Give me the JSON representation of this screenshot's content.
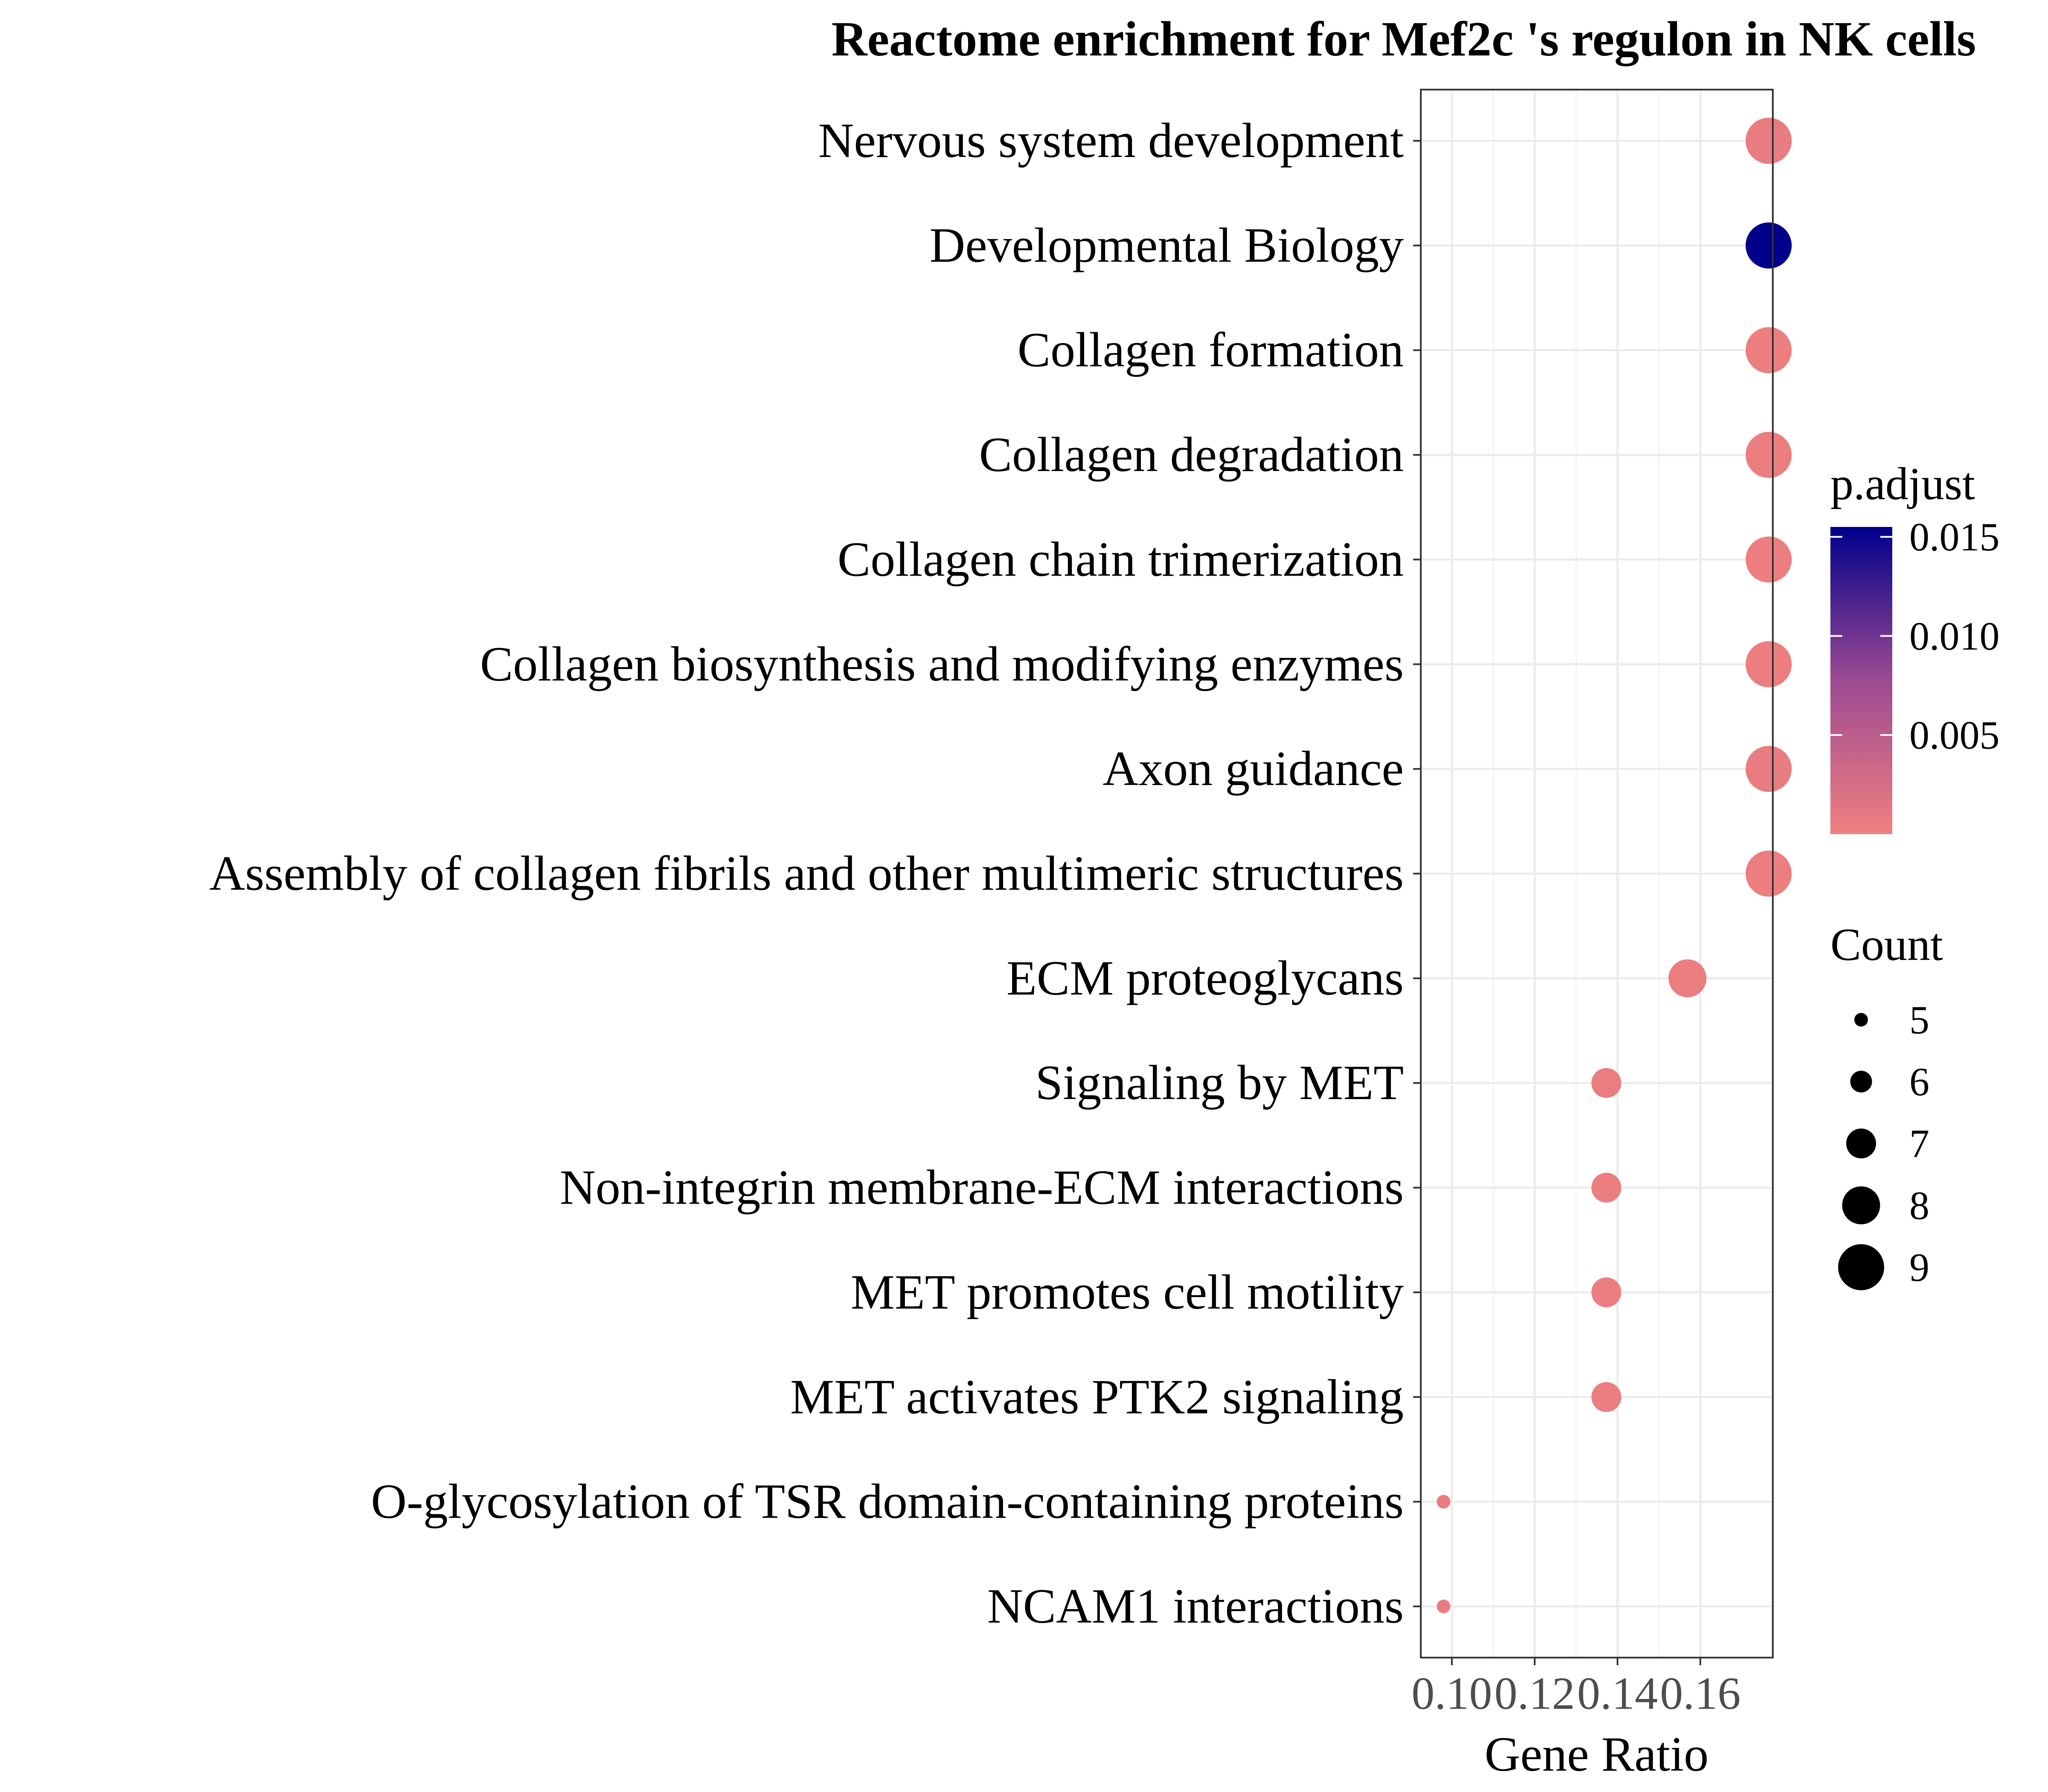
{
  "chart_data": {
    "type": "scatter",
    "title": "Reactome enrichment for Mef2c 's regulon in NK cells",
    "xlabel": "Gene Ratio",
    "ylabel": "",
    "xlim": [
      0.0925,
      0.1775
    ],
    "x_ticks": [
      0.1,
      0.12,
      0.14,
      0.16
    ],
    "x_tick_labels": [
      "0.10",
      "0.12",
      "0.14",
      "0.16"
    ],
    "grid": true,
    "categories": [
      "Nervous system development",
      "Developmental Biology",
      "Collagen formation",
      "Collagen degradation",
      "Collagen chain trimerization",
      "Collagen biosynthesis and modifying enzymes",
      "Axon guidance",
      "Assembly of collagen fibrils and other multimeric structures",
      "ECM proteoglycans",
      "Signaling by MET",
      "Non-integrin membrane-ECM interactions",
      "MET promotes cell motility",
      "MET activates PTK2 signaling",
      "O-glycosylation of TSR domain-containing proteins",
      "NCAM1 interactions"
    ],
    "points": [
      {
        "term": "Nervous system development",
        "gene_ratio": 0.1765,
        "count": 9,
        "p_adjust": 0.0005
      },
      {
        "term": "Developmental Biology",
        "gene_ratio": 0.1765,
        "count": 9,
        "p_adjust": 0.0155
      },
      {
        "term": "Collagen formation",
        "gene_ratio": 0.1765,
        "count": 9,
        "p_adjust": 0.0002
      },
      {
        "term": "Collagen degradation",
        "gene_ratio": 0.1765,
        "count": 9,
        "p_adjust": 0.0002
      },
      {
        "term": "Collagen chain trimerization",
        "gene_ratio": 0.1765,
        "count": 9,
        "p_adjust": 0.0002
      },
      {
        "term": "Collagen biosynthesis and modifying enzymes",
        "gene_ratio": 0.1765,
        "count": 9,
        "p_adjust": 0.0002
      },
      {
        "term": "Axon guidance",
        "gene_ratio": 0.1765,
        "count": 9,
        "p_adjust": 0.0005
      },
      {
        "term": "Assembly of collagen fibrils and other multimeric structures",
        "gene_ratio": 0.1765,
        "count": 9,
        "p_adjust": 0.0002
      },
      {
        "term": "ECM proteoglycans",
        "gene_ratio": 0.1569,
        "count": 8,
        "p_adjust": 0.0003
      },
      {
        "term": "Signaling by MET",
        "gene_ratio": 0.1373,
        "count": 7,
        "p_adjust": 0.0004
      },
      {
        "term": "Non-integrin membrane-ECM interactions",
        "gene_ratio": 0.1373,
        "count": 7,
        "p_adjust": 0.0003
      },
      {
        "term": "MET promotes cell motility",
        "gene_ratio": 0.1373,
        "count": 7,
        "p_adjust": 0.0003
      },
      {
        "term": "MET activates PTK2 signaling",
        "gene_ratio": 0.1373,
        "count": 7,
        "p_adjust": 0.0003
      },
      {
        "term": "O-glycosylation of TSR domain-containing proteins",
        "gene_ratio": 0.098,
        "count": 5,
        "p_adjust": 0.0005
      },
      {
        "term": "NCAM1 interactions",
        "gene_ratio": 0.098,
        "count": 5,
        "p_adjust": 0.0004
      }
    ],
    "color_legend": {
      "title": "p.adjust",
      "range": [
        0.0,
        0.0155
      ],
      "breaks": [
        0.005,
        0.01,
        0.015
      ],
      "labels": [
        "0.005",
        "0.010",
        "0.015"
      ],
      "low_color": "#f08080",
      "high_color": "#00008b"
    },
    "size_legend": {
      "title": "Count",
      "values": [
        5,
        6,
        7,
        8,
        9
      ],
      "labels": [
        "5",
        "6",
        "7",
        "8",
        "9"
      ]
    },
    "legend_position": "right"
  }
}
